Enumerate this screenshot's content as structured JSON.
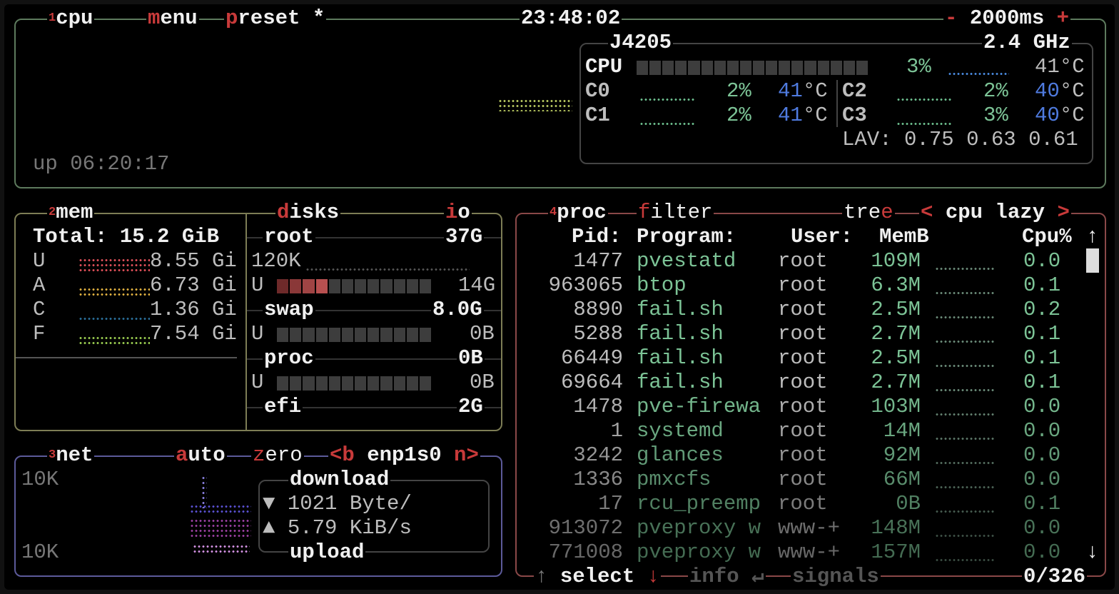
{
  "cpu_box": {
    "number": "1",
    "title": "cpu",
    "menu_key": "m",
    "menu_rest": "enu",
    "preset_key": "p",
    "preset_rest": "reset *",
    "clock": "23:48:02",
    "minus": "-",
    "interval": "2000ms",
    "plus": "+",
    "uptime": "up 06:20:17",
    "model": "J4205",
    "freq": "2.4 GHz",
    "total": {
      "label": "CPU",
      "percent": "3%",
      "temp": "41°C",
      "usage": 0.03
    },
    "cores": [
      {
        "label": "C0",
        "percent": "2%",
        "temp": "41",
        "unit": "°C"
      },
      {
        "label": "C1",
        "percent": "2%",
        "temp": "41",
        "unit": "°C"
      },
      {
        "label": "C2",
        "percent": "2%",
        "temp": "40",
        "unit": "°C"
      },
      {
        "label": "C3",
        "percent": "3%",
        "temp": "40",
        "unit": "°C"
      }
    ],
    "lav_label": "LAV:",
    "lav": [
      "0.75",
      "0.63",
      "0.61"
    ]
  },
  "mem_box": {
    "number": "2",
    "title": "mem",
    "total": "Total: 15.2 GiB",
    "rows": [
      {
        "label": "U",
        "value": "8.55 Gi",
        "color": "#e0505a"
      },
      {
        "label": "A",
        "value": "6.73 Gi",
        "color": "#e0b040"
      },
      {
        "label": "C",
        "value": "1.36 Gi",
        "color": "#2a6f9a"
      },
      {
        "label": "F",
        "value": "7.54 Gi",
        "color": "#9acd50"
      }
    ]
  },
  "disks_box": {
    "title_key": "d",
    "title_rest": "isks",
    "io_key": "i",
    "io_rest": "o",
    "root": {
      "name": "root",
      "size": "37G",
      "io": "120K",
      "used_label": "U",
      "used": "14G",
      "usage": 0.27
    },
    "swap": {
      "name": "swap",
      "size": "8.0G",
      "used_label": "U",
      "used": "0B",
      "usage": 0
    },
    "proc": {
      "name": "proc",
      "size": "0B",
      "used_label": "U",
      "used": "0B",
      "usage": 0
    },
    "efi": {
      "name": "efi",
      "size": "2G"
    }
  },
  "net_box": {
    "number": "3",
    "title": "net",
    "auto_key": "a",
    "auto_rest": "uto",
    "zero_key": "z",
    "zero_rest": "ero",
    "prev": "<b",
    "iface": "enp1s0",
    "next": "n>",
    "scale_top": "10K",
    "scale_bottom": "10K",
    "download_label": "download",
    "download_arrow": "▼",
    "download": "1021 Byte/",
    "upload_arrow": "▲",
    "upload": "5.79 KiB/s",
    "upload_label": "upload"
  },
  "proc_box": {
    "number": "4",
    "title": "proc",
    "filter_key": "f",
    "filter_rest": "ilter",
    "tree_rest": "tre",
    "tree_key": "e",
    "sort_prev": "<",
    "sort": "cpu lazy",
    "sort_next": ">",
    "headers": {
      "pid": "Pid:",
      "program": "Program:",
      "user": "User:",
      "mem": "MemB",
      "cpu": "Cpu%"
    },
    "scroll_up": "↑",
    "scroll_down": "↓",
    "rows": [
      {
        "pid": "1477",
        "program": "pvestatd",
        "user": "root",
        "mem": "109M",
        "cpu": "0.0"
      },
      {
        "pid": "963065",
        "program": "btop",
        "user": "root",
        "mem": "6.3M",
        "cpu": "0.1"
      },
      {
        "pid": "8890",
        "program": "fail.sh",
        "user": "root",
        "mem": "2.5M",
        "cpu": "0.2"
      },
      {
        "pid": "5288",
        "program": "fail.sh",
        "user": "root",
        "mem": "2.7M",
        "cpu": "0.1"
      },
      {
        "pid": "66449",
        "program": "fail.sh",
        "user": "root",
        "mem": "2.5M",
        "cpu": "0.1"
      },
      {
        "pid": "69664",
        "program": "fail.sh",
        "user": "root",
        "mem": "2.7M",
        "cpu": "0.1"
      },
      {
        "pid": "1478",
        "program": "pve-firewa",
        "user": "root",
        "mem": "103M",
        "cpu": "0.0"
      },
      {
        "pid": "1",
        "program": "systemd",
        "user": "root",
        "mem": "14M",
        "cpu": "0.0"
      },
      {
        "pid": "3242",
        "program": "glances",
        "user": "root",
        "mem": "92M",
        "cpu": "0.0"
      },
      {
        "pid": "1336",
        "program": "pmxcfs",
        "user": "root",
        "mem": "66M",
        "cpu": "0.0"
      },
      {
        "pid": "17",
        "program": "rcu_preemp",
        "user": "root",
        "mem": "0B",
        "cpu": "0.1"
      },
      {
        "pid": "913072",
        "program": "pveproxy w",
        "user": "www-+",
        "mem": "148M",
        "cpu": "0.0"
      },
      {
        "pid": "771008",
        "program": "pveproxy w",
        "user": "www-+",
        "mem": "157M",
        "cpu": "0.0"
      }
    ],
    "footer": {
      "up": "↑",
      "select": "select",
      "down": "↓",
      "info": "info",
      "enter": "↵",
      "signals": "signals",
      "count": "0/326"
    }
  },
  "colors": {
    "cpu_border": "#5d7a5d",
    "mem_border": "#7d7d55",
    "net_border": "#5c5a9a",
    "proc_border": "#8a4848",
    "accent": "#c83a3a"
  }
}
